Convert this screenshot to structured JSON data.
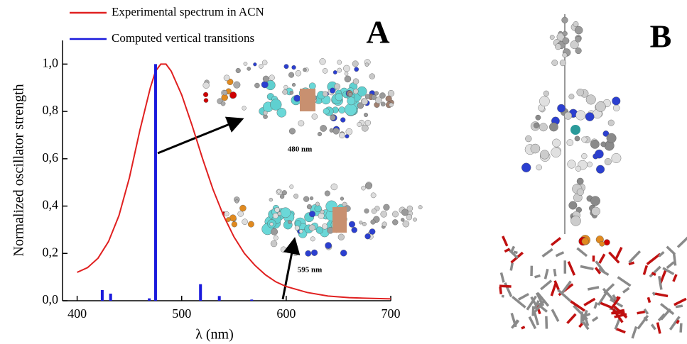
{
  "chart_data": {
    "type": "line",
    "xlabel": "λ (nm)",
    "ylabel": "Normalized oscillator strength",
    "xlim": [
      386,
      700
    ],
    "ylim": [
      0,
      1.1
    ],
    "xticks": [
      400,
      500,
      600,
      700
    ],
    "yticks": [
      {
        "value": 0,
        "label": "0,0"
      },
      {
        "value": 0.2,
        "label": "0,2"
      },
      {
        "value": 0.4,
        "label": "0,4"
      },
      {
        "value": 0.6,
        "label": "0,6"
      },
      {
        "value": 0.8,
        "label": "0,8"
      },
      {
        "value": 1.0,
        "label": "1,0"
      }
    ],
    "series": [
      {
        "name": "Experimental spectrum in ACN",
        "color": "#e02020",
        "type": "line",
        "x": [
          400,
          410,
          420,
          430,
          440,
          450,
          460,
          470,
          475,
          480,
          485,
          490,
          500,
          510,
          520,
          530,
          540,
          550,
          560,
          570,
          580,
          590,
          600,
          620,
          640,
          660,
          680,
          700
        ],
        "values": [
          0.12,
          0.14,
          0.18,
          0.25,
          0.36,
          0.52,
          0.72,
          0.9,
          0.97,
          1.0,
          1.0,
          0.97,
          0.87,
          0.74,
          0.6,
          0.47,
          0.36,
          0.27,
          0.2,
          0.15,
          0.11,
          0.08,
          0.06,
          0.035,
          0.02,
          0.013,
          0.01,
          0.008
        ]
      },
      {
        "name": "Computed vertical transitions",
        "color": "#1a1adc",
        "type": "bar",
        "x": [
          424,
          432,
          469,
          475,
          518,
          536,
          567
        ],
        "values": [
          0.045,
          0.03,
          0.01,
          1.0,
          0.07,
          0.02,
          0.005
        ]
      }
    ],
    "annotations": [
      "480 nm",
      "595 nm",
      "A",
      "B"
    ]
  }
}
